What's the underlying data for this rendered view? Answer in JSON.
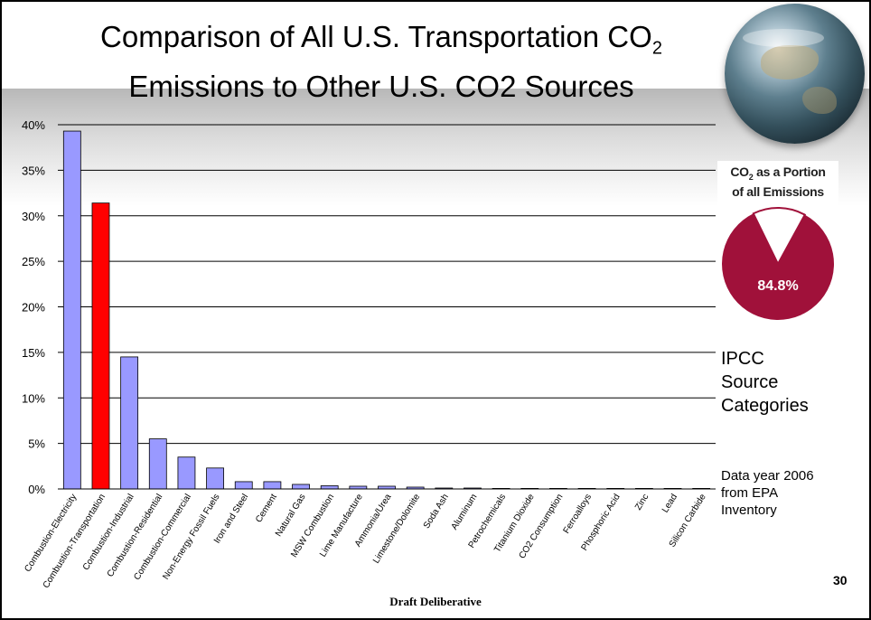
{
  "slide": {
    "title_line1_main": "Comparison of All U.S. Transportation CO",
    "title_line1_sub": "2",
    "title_line2": "Emissions to Other U.S. CO2 Sources",
    "page_number": "30",
    "footer": "Draft Deliberative"
  },
  "side": {
    "ipcc_label": [
      "IPCC",
      "Source",
      "Categories"
    ],
    "data_year_note": [
      "Data year 2006",
      "from EPA",
      "Inventory"
    ]
  },
  "inset": {
    "title_prefix": "CO",
    "title_sub": "2",
    "title_suffix": " as a Portion",
    "title_line2": "of all Emissions",
    "value_label": "84.8%",
    "value": 84.8,
    "slice_color": "#a0113a",
    "rest_color": "#ffffff"
  },
  "chart_data": {
    "type": "bar",
    "title": "Comparison of All U.S. Transportation CO2 Emissions to Other U.S. CO2 Sources",
    "xlabel": "",
    "ylabel": "",
    "ylim": [
      0,
      40
    ],
    "yticks": [
      0,
      5,
      10,
      15,
      20,
      25,
      30,
      35,
      40
    ],
    "y_tick_labels": [
      "0%",
      "5%",
      "10%",
      "15%",
      "20%",
      "25%",
      "30%",
      "35%",
      "40%"
    ],
    "grid": true,
    "categories": [
      "Combustion-Electricity",
      "Combustion-Transportation",
      "Combustion-Industrial",
      "Combustion-Residential",
      "Combustion-Commercial",
      "Non-Energy Fossil Fuels",
      "Iron and Steel",
      "Cement",
      "Natural Gas",
      "MSW Combustion",
      "Lime Manufacture",
      "Ammonia/Urea",
      "Limestone/Dolomite",
      "Soda Ash",
      "Aluminum",
      "Petrochemicals",
      "Titanium Dioxide",
      "CO2 Consumption",
      "Ferroalloys",
      "Phosphoric Acid",
      "Zinc",
      "Lead",
      "Silicon Carbide"
    ],
    "values": [
      39.3,
      31.4,
      14.5,
      5.5,
      3.5,
      2.3,
      0.8,
      0.8,
      0.5,
      0.35,
      0.3,
      0.3,
      0.2,
      0.1,
      0.1,
      0.05,
      0.03,
      0.02,
      0.02,
      0.02,
      0.01,
      0.005,
      0.003
    ],
    "highlight_index": 1,
    "bar_color": "#9999ff",
    "highlight_color": "#ff0000",
    "bar_edge_color": "#000000"
  }
}
